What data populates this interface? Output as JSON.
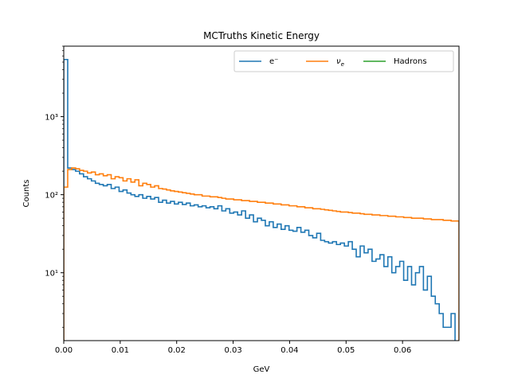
{
  "chart_data": {
    "type": "histogram-step",
    "title": "MCTruths Kinetic Energy",
    "xlabel": "GeV",
    "ylabel": "Counts",
    "xscale": "linear",
    "yscale": "log",
    "xlim": [
      0.0,
      0.07
    ],
    "ylim": [
      1.35,
      8000
    ],
    "x_ticks": [
      0.0,
      0.01,
      0.02,
      0.03,
      0.04,
      0.05,
      0.06
    ],
    "x_tick_labels": [
      "0.00",
      "0.01",
      "0.02",
      "0.03",
      "0.04",
      "0.05",
      "0.06"
    ],
    "y_ticks": [
      10,
      100,
      1000
    ],
    "y_tick_labels": [
      "10¹",
      "10²",
      "10³"
    ],
    "bins": {
      "start": 0.0,
      "width": 0.0007,
      "count": 100
    },
    "legend": {
      "placement": "top-right",
      "columns": 3
    },
    "series": [
      {
        "name": "e⁻",
        "color": "#1f77b4",
        "values": [
          5400,
          220,
          210,
          200,
          185,
          170,
          160,
          150,
          140,
          135,
          130,
          135,
          120,
          125,
          110,
          115,
          105,
          100,
          95,
          100,
          90,
          95,
          88,
          92,
          80,
          85,
          78,
          82,
          76,
          80,
          75,
          78,
          72,
          74,
          70,
          72,
          68,
          70,
          66,
          72,
          62,
          66,
          58,
          60,
          55,
          62,
          50,
          55,
          45,
          50,
          47,
          40,
          45,
          38,
          42,
          36,
          40,
          35,
          34,
          38,
          33,
          35,
          30,
          28,
          32,
          26,
          25,
          24,
          25,
          23,
          24,
          22,
          25,
          20,
          16,
          22,
          18,
          20,
          14,
          15,
          17,
          12,
          16,
          10,
          12,
          14,
          8,
          12,
          7,
          10,
          12,
          6,
          9,
          5,
          4,
          3,
          2,
          2,
          3,
          1
        ]
      },
      {
        "name": "ν",
        "name_subscript": "e",
        "color": "#ff7f0e",
        "values": [
          125,
          210,
          220,
          215,
          205,
          200,
          190,
          195,
          180,
          185,
          175,
          180,
          160,
          170,
          165,
          150,
          160,
          145,
          155,
          130,
          140,
          135,
          125,
          130,
          120,
          118,
          115,
          112,
          110,
          108,
          106,
          104,
          102,
          100,
          100,
          96,
          96,
          94,
          94,
          92,
          90,
          88,
          88,
          86,
          86,
          84,
          84,
          82,
          82,
          80,
          80,
          78,
          78,
          76,
          76,
          74,
          74,
          72,
          72,
          70,
          70,
          68,
          68,
          66,
          66,
          65,
          64,
          63,
          62,
          61,
          60,
          60,
          59,
          58,
          58,
          57,
          56,
          56,
          55,
          55,
          54,
          54,
          53,
          53,
          52,
          52,
          51,
          51,
          50,
          50,
          50,
          49,
          49,
          48,
          48,
          48,
          47,
          47,
          46,
          46
        ]
      },
      {
        "name": "Hadrons",
        "color": "#2ca02c",
        "values": []
      }
    ]
  }
}
